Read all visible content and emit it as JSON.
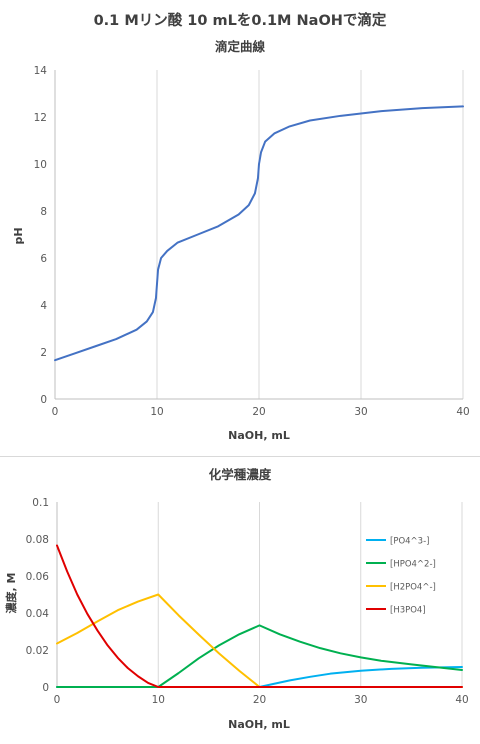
{
  "page_title": "0.1 Mリン酸 10 mLを0.1M NaOHで滴定",
  "chart_data": [
    {
      "type": "line",
      "title": "滴定曲線",
      "xlabel": "NaOH, mL",
      "ylabel": "pH",
      "xlim": [
        0,
        40
      ],
      "ylim": [
        0,
        14
      ],
      "xticks": [
        0,
        10,
        20,
        30,
        40
      ],
      "yticks": [
        0,
        2,
        4,
        6,
        8,
        10,
        12,
        14
      ],
      "grid": "x-major",
      "legend": "none",
      "series": [
        {
          "color": "#4472c4",
          "points": [
            [
              0,
              1.65
            ],
            [
              2,
              1.95
            ],
            [
              4,
              2.25
            ],
            [
              6,
              2.55
            ],
            [
              8,
              2.95
            ],
            [
              9,
              3.3
            ],
            [
              9.6,
              3.7
            ],
            [
              9.9,
              4.3
            ],
            [
              10,
              4.9
            ],
            [
              10.1,
              5.5
            ],
            [
              10.4,
              6.0
            ],
            [
              11,
              6.3
            ],
            [
              12,
              6.65
            ],
            [
              14,
              7.0
            ],
            [
              16,
              7.35
            ],
            [
              18,
              7.85
            ],
            [
              19,
              8.25
            ],
            [
              19.6,
              8.75
            ],
            [
              19.9,
              9.4
            ],
            [
              20,
              10.0
            ],
            [
              20.2,
              10.5
            ],
            [
              20.6,
              10.95
            ],
            [
              21.5,
              11.3
            ],
            [
              23,
              11.6
            ],
            [
              25,
              11.85
            ],
            [
              28,
              12.05
            ],
            [
              32,
              12.25
            ],
            [
              36,
              12.38
            ],
            [
              40,
              12.45
            ]
          ]
        }
      ]
    },
    {
      "type": "line",
      "title": "化学種濃度",
      "xlabel": "NaOH, mL",
      "ylabel": "濃度, M",
      "xlim": [
        0,
        40
      ],
      "ylim": [
        0,
        0.1
      ],
      "xticks": [
        0,
        10,
        20,
        30,
        40
      ],
      "yticks": [
        0,
        0.02,
        0.04,
        0.06,
        0.08,
        0.1
      ],
      "ytick_labels": [
        "0",
        "0.02",
        "0.04",
        "0.06",
        "0.08",
        "0.1"
      ],
      "grid": "x-major",
      "legend": "right",
      "series": [
        {
          "name": "[PO4^3-]",
          "color": "#00b0f0",
          "points": [
            [
              0,
              0
            ],
            [
              20,
              0
            ],
            [
              21,
              0.0012
            ],
            [
              23,
              0.0036
            ],
            [
              25,
              0.0055
            ],
            [
              27,
              0.0072
            ],
            [
              30,
              0.0088
            ],
            [
              33,
              0.0098
            ],
            [
              36,
              0.0104
            ],
            [
              40,
              0.0108
            ]
          ]
        },
        {
          "name": "[HPO4^2-]",
          "color": "#00b050",
          "points": [
            [
              0,
              0
            ],
            [
              10,
              0
            ],
            [
              12,
              0.0075
            ],
            [
              14,
              0.0155
            ],
            [
              16,
              0.0225
            ],
            [
              18,
              0.0285
            ],
            [
              20,
              0.0333
            ],
            [
              22,
              0.0285
            ],
            [
              24,
              0.0245
            ],
            [
              26,
              0.021
            ],
            [
              28,
              0.0182
            ],
            [
              30,
              0.016
            ],
            [
              32,
              0.0142
            ],
            [
              35,
              0.0122
            ],
            [
              38,
              0.0104
            ],
            [
              40,
              0.0092
            ]
          ]
        },
        {
          "name": "[H2PO4^-]",
          "color": "#ffc000",
          "points": [
            [
              0,
              0.0235
            ],
            [
              2,
              0.0292
            ],
            [
              4,
              0.0355
            ],
            [
              6,
              0.0415
            ],
            [
              8,
              0.0462
            ],
            [
              10,
              0.05
            ],
            [
              12,
              0.0388
            ],
            [
              14,
              0.0283
            ],
            [
              16,
              0.0182
            ],
            [
              18,
              0.0088
            ],
            [
              20,
              0
            ],
            [
              40,
              0
            ]
          ]
        },
        {
          "name": "[H3PO4]",
          "color": "#e00000",
          "points": [
            [
              0,
              0.0765
            ],
            [
              1,
              0.0625
            ],
            [
              2,
              0.05
            ],
            [
              3,
              0.0395
            ],
            [
              4,
              0.0305
            ],
            [
              5,
              0.0225
            ],
            [
              6,
              0.0158
            ],
            [
              7,
              0.0102
            ],
            [
              8,
              0.0058
            ],
            [
              9,
              0.0022
            ],
            [
              10,
              0
            ],
            [
              40,
              0
            ]
          ]
        }
      ]
    }
  ]
}
